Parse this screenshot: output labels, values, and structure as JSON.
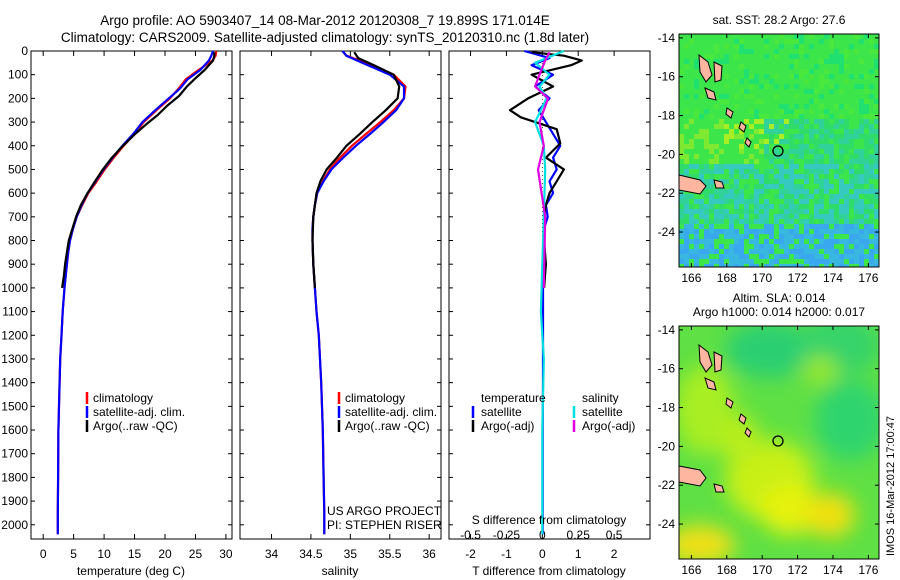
{
  "header": {
    "line1": "Argo profile: AO 5903407_14 08-Mar-2012 20120308_7 19.899S 171.014E",
    "line2": "Climatology: CARS2009. Satellite-adjusted climatology: synTS_20120310.nc (1.8d later)"
  },
  "colors": {
    "climatology": "#ff0000",
    "satellite": "#0000ff",
    "argo": "#000000",
    "sat_salinity": "#00e0e0",
    "argo_adj_salinity": "#e000e0"
  },
  "credit": {
    "line1": "US ARGO PROJECT",
    "line2": "PI: STEPHEN RISER"
  },
  "watermark": "IMOS 16-Mar-2012 17:00:47",
  "chart_data": [
    {
      "type": "line",
      "xlabel": "temperature (deg C)",
      "xlim": [
        -2,
        31
      ],
      "ylim": [
        2060,
        0
      ],
      "xticks": [
        "0",
        "5",
        "10",
        "15",
        "20",
        "25",
        "30"
      ],
      "yticks": [
        "0",
        "100",
        "200",
        "300",
        "400",
        "500",
        "600",
        "700",
        "800",
        "900",
        "1000",
        "1100",
        "1200",
        "1300",
        "1400",
        "1500",
        "1600",
        "1700",
        "1800",
        "1900",
        "2000"
      ],
      "legend": [
        "climatology",
        "satellite-adj. clim.",
        "Argo(..raw -QC)"
      ],
      "series": [
        {
          "name": "climatology",
          "color": "#ff0000",
          "x": [
            28.4,
            28.3,
            27.8,
            25.5,
            23.4,
            22.2,
            20.8,
            18.6,
            16.5,
            15,
            13.2,
            11.6,
            10.1,
            8.8,
            7.4,
            6.4,
            5.5,
            4.9,
            4.4,
            4.1,
            3.9,
            3.7,
            3.5,
            3.2,
            3,
            2.8,
            2.7,
            2.6,
            2.5,
            2.45,
            2.4,
            2.4
          ],
          "y": [
            0,
            20,
            40,
            80,
            120,
            160,
            200,
            250,
            300,
            350,
            400,
            450,
            500,
            550,
            600,
            650,
            700,
            750,
            800,
            850,
            900,
            950,
            1000,
            1100,
            1200,
            1300,
            1400,
            1500,
            1600,
            1800,
            1950,
            2040
          ]
        },
        {
          "name": "satellite-adj. clim.",
          "color": "#0000ff",
          "x": [
            27.9,
            27.6,
            27.2,
            25.8,
            23.7,
            22.4,
            20.6,
            18.4,
            16.3,
            14.8,
            13,
            11.4,
            9.9,
            8.6,
            7.3,
            6.3,
            5.5,
            4.9,
            4.4,
            4.1,
            3.9,
            3.7,
            3.5,
            3.2,
            3,
            2.8,
            2.7,
            2.6,
            2.5,
            2.45,
            2.4,
            2.4
          ],
          "y": [
            0,
            20,
            40,
            80,
            120,
            160,
            200,
            250,
            300,
            350,
            400,
            450,
            500,
            550,
            600,
            650,
            700,
            750,
            800,
            850,
            900,
            950,
            1000,
            1100,
            1200,
            1300,
            1400,
            1500,
            1600,
            1800,
            1950,
            2040
          ]
        },
        {
          "name": "Argo(..raw -QC)",
          "color": "#000000",
          "x": [
            28.1,
            28.1,
            27.9,
            26.5,
            24.8,
            23.6,
            22.3,
            20.4,
            18.8,
            16.9,
            15.1,
            13.1,
            11.3,
            9.8,
            8.5,
            7.3,
            6.2,
            5.4,
            4.8,
            4.2,
            3.9,
            3.6,
            3.4,
            3.1
          ],
          "y": [
            5,
            20,
            40,
            80,
            120,
            150,
            190,
            230,
            270,
            310,
            350,
            400,
            450,
            500,
            550,
            600,
            650,
            700,
            750,
            800,
            850,
            900,
            950,
            1000
          ]
        }
      ]
    },
    {
      "type": "line",
      "xlabel": "salinity",
      "xlim": [
        33.6,
        36.15
      ],
      "ylim": [
        2060,
        0
      ],
      "xticks": [
        "34",
        "34.5",
        "35",
        "35.5",
        "36"
      ],
      "legend": [
        "climatology",
        "satellite-adj. clim.",
        "Argo(..raw -QC)"
      ],
      "series": [
        {
          "name": "climatology",
          "color": "#ff0000",
          "x": [
            34.9,
            34.95,
            35.2,
            35.55,
            35.7,
            35.68,
            35.55,
            35.38,
            35.2,
            35.02,
            34.87,
            34.74,
            34.65,
            34.58,
            34.55,
            34.53,
            34.52,
            34.52,
            34.53,
            34.55,
            34.57,
            34.6,
            34.63,
            34.65,
            34.66,
            34.67,
            34.67
          ],
          "y": [
            0,
            20,
            50,
            100,
            150,
            200,
            250,
            300,
            350,
            400,
            450,
            500,
            550,
            600,
            650,
            700,
            750,
            800,
            900,
            1000,
            1100,
            1200,
            1400,
            1600,
            1800,
            1950,
            2040
          ]
        },
        {
          "name": "satellite-adj. clim.",
          "color": "#0000ff",
          "x": [
            34.9,
            34.95,
            35.15,
            35.5,
            35.68,
            35.68,
            35.58,
            35.42,
            35.25,
            35.07,
            34.91,
            34.76,
            34.66,
            34.58,
            34.55,
            34.53,
            34.52,
            34.52,
            34.53,
            34.55,
            34.57,
            34.6,
            34.63,
            34.65,
            34.66,
            34.67,
            34.67
          ],
          "y": [
            0,
            20,
            50,
            100,
            150,
            200,
            250,
            300,
            350,
            400,
            450,
            500,
            550,
            600,
            650,
            700,
            750,
            800,
            900,
            1000,
            1100,
            1200,
            1400,
            1600,
            1800,
            1950,
            2040
          ]
        },
        {
          "name": "Argo(..raw -QC)",
          "color": "#000000",
          "x": [
            35.05,
            35.1,
            35.3,
            35.55,
            35.62,
            35.6,
            35.45,
            35.28,
            35.12,
            34.95,
            34.83,
            34.7,
            34.62,
            34.57,
            34.55,
            34.53,
            34.52,
            34.53,
            34.55
          ],
          "y": [
            5,
            30,
            60,
            100,
            150,
            200,
            250,
            300,
            350,
            400,
            450,
            500,
            550,
            600,
            650,
            700,
            800,
            900,
            1000
          ]
        }
      ]
    },
    {
      "type": "line",
      "xlabel": "T difference from climatology",
      "x2label": "S difference from climatology",
      "xlim": [
        -2.6,
        3
      ],
      "ylim": [
        2060,
        0
      ],
      "xticks": [
        "-2",
        "-1",
        "0",
        "1",
        "2"
      ],
      "x2ticks": [
        "-0.5",
        "-0.25",
        "0",
        "0.25",
        "0.5"
      ],
      "x2lim": [
        -0.65,
        0.75
      ],
      "legend_temperature_title": "temperature",
      "legend_salinity_title": "salinity",
      "legend_temperature": [
        "satellite",
        "Argo(-adj)"
      ],
      "legend_salinity": [
        "satellite",
        "Argo(-adj)"
      ],
      "series": [
        {
          "name": "temperature satellite",
          "color": "#0000ff",
          "axis": "T",
          "x": [
            -0.5,
            0.2,
            -0.3,
            0.3,
            -0.2,
            0.2,
            -0.1,
            0.1,
            0.3,
            0.5,
            0.3,
            0.4,
            0.2,
            0.3,
            0.1,
            0.15,
            0.05,
            0.05,
            0.02,
            0.02,
            0.02,
            0.02,
            0.01,
            0.01,
            0.01
          ],
          "y": [
            0,
            30,
            60,
            100,
            150,
            200,
            250,
            300,
            350,
            400,
            450,
            500,
            550,
            600,
            650,
            700,
            750,
            800,
            900,
            1000,
            1200,
            1400,
            1600,
            1800,
            2040
          ]
        },
        {
          "name": "temperature Argo(-adj)",
          "color": "#000000",
          "axis": "T",
          "x": [
            -0.3,
            0.6,
            1.1,
            0.8,
            -0.3,
            0.3,
            -0.4,
            -0.9,
            -0.6,
            0.4,
            0.5,
            0.3,
            0.1,
            0.6,
            0.4,
            0.2,
            0.1,
            0.05,
            0.05,
            0.1,
            0.05
          ],
          "y": [
            5,
            20,
            40,
            60,
            100,
            150,
            200,
            250,
            280,
            330,
            390,
            420,
            450,
            500,
            550,
            600,
            650,
            700,
            800,
            900,
            1000
          ]
        },
        {
          "name": "salinity satellite",
          "color": "#00e0e0",
          "axis": "S",
          "x": [
            0.15,
            -0.05,
            0.05,
            -0.02,
            0.03,
            -0.05,
            0.01,
            0.02,
            0.01,
            0,
            -0.01,
            0.01,
            0,
            0,
            0
          ],
          "y": [
            0,
            50,
            100,
            150,
            200,
            300,
            400,
            500,
            700,
            900,
            1100,
            1300,
            1600,
            1800,
            2040
          ]
        },
        {
          "name": "salinity Argo(-adj)",
          "color": "#e000e0",
          "axis": "S",
          "x": [
            0.05,
            0.02,
            -0.02,
            -0.05,
            0.04,
            -0.02,
            0.01,
            -0.03,
            0.02,
            0.01
          ],
          "y": [
            5,
            40,
            100,
            150,
            200,
            300,
            400,
            500,
            700,
            1000
          ]
        }
      ]
    },
    {
      "type": "heatmap",
      "title": "sat. SST: 28.2 Argo: 27.6",
      "xticks": [
        "166",
        "168",
        "170",
        "172",
        "174",
        "176"
      ],
      "yticks": [
        "-14",
        "-16",
        "-18",
        "-20",
        "-22",
        "-24"
      ],
      "xlim": [
        165.3,
        176.6
      ],
      "ylim": [
        -25.8,
        -13.8
      ]
    },
    {
      "type": "heatmap",
      "title": "Altim. SLA: 0.014",
      "subtitle": "Argo h1000: 0.014 h2000: 0.017",
      "xticks": [
        "166",
        "168",
        "170",
        "172",
        "174",
        "176"
      ],
      "yticks": [
        "-14",
        "-16",
        "-18",
        "-20",
        "-22",
        "-24"
      ],
      "xlim": [
        165.3,
        176.6
      ],
      "ylim": [
        -25.8,
        -13.8
      ]
    }
  ]
}
